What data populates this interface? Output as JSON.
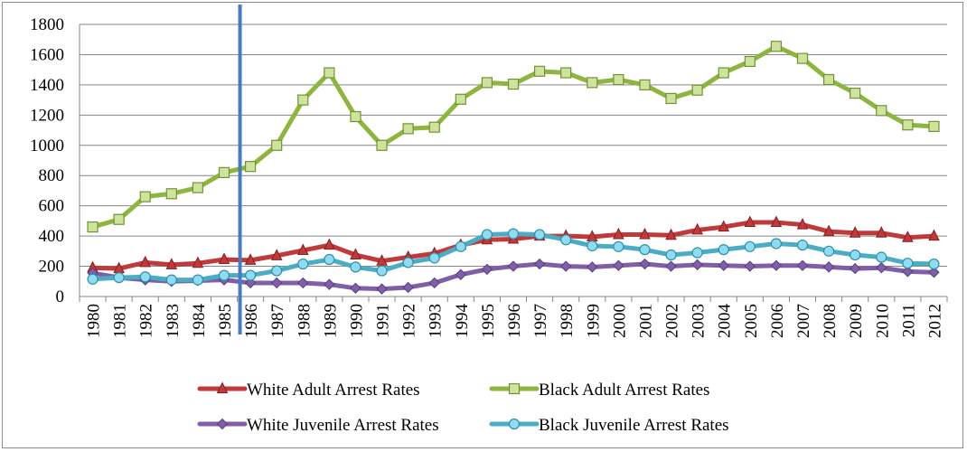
{
  "chart_data": {
    "type": "line",
    "title": "",
    "xlabel": "",
    "ylabel": "",
    "ylim": [
      0,
      1800
    ],
    "yticks": [
      0,
      200,
      400,
      600,
      800,
      1000,
      1200,
      1400,
      1600,
      1800
    ],
    "grid": "horizontal",
    "legend_position": "bottom",
    "marker_line_x": "1986",
    "marker_line_color": "#4a7bc0",
    "categories": [
      "1980",
      "1981",
      "1982",
      "1983",
      "1984",
      "1985",
      "1986",
      "1987",
      "1988",
      "1989",
      "1990",
      "1991",
      "1992",
      "1993",
      "1994",
      "1995",
      "1996",
      "1997",
      "1998",
      "1999",
      "2000",
      "2001",
      "2002",
      "2003",
      "2004",
      "2005",
      "2006",
      "2007",
      "2008",
      "2009",
      "2010",
      "2011",
      "2012"
    ],
    "series": [
      {
        "name": "White Adult Arrest Rates",
        "color": "#c0393b",
        "marker": "triangle",
        "values": [
          190,
          185,
          225,
          210,
          220,
          245,
          240,
          270,
          305,
          340,
          275,
          235,
          260,
          285,
          340,
          375,
          380,
          400,
          400,
          395,
          410,
          410,
          405,
          440,
          460,
          490,
          490,
          475,
          430,
          420,
          420,
          390,
          400
        ]
      },
      {
        "name": "Black Adult Arrest Rates",
        "color": "#8db53f",
        "marker": "square",
        "values": [
          460,
          510,
          660,
          680,
          720,
          820,
          860,
          1000,
          1300,
          1480,
          1190,
          1000,
          1110,
          1120,
          1305,
          1415,
          1405,
          1490,
          1480,
          1415,
          1435,
          1400,
          1310,
          1365,
          1480,
          1555,
          1655,
          1575,
          1435,
          1345,
          1230,
          1135,
          1125
        ]
      },
      {
        "name": "White Juvenile Arrest Rates",
        "color": "#7f5fa8",
        "marker": "diamond",
        "values": [
          155,
          125,
          110,
          100,
          105,
          110,
          90,
          90,
          90,
          80,
          55,
          50,
          60,
          90,
          145,
          180,
          200,
          215,
          200,
          195,
          205,
          215,
          200,
          210,
          205,
          200,
          205,
          205,
          195,
          185,
          190,
          165,
          160
        ]
      },
      {
        "name": "Black Juvenile Arrest Rates",
        "color": "#4bacc6",
        "marker": "circle",
        "values": [
          115,
          125,
          130,
          110,
          110,
          140,
          140,
          170,
          215,
          245,
          195,
          170,
          225,
          255,
          330,
          410,
          415,
          410,
          375,
          335,
          330,
          310,
          275,
          290,
          310,
          330,
          350,
          340,
          300,
          275,
          260,
          220,
          215
        ]
      }
    ]
  }
}
